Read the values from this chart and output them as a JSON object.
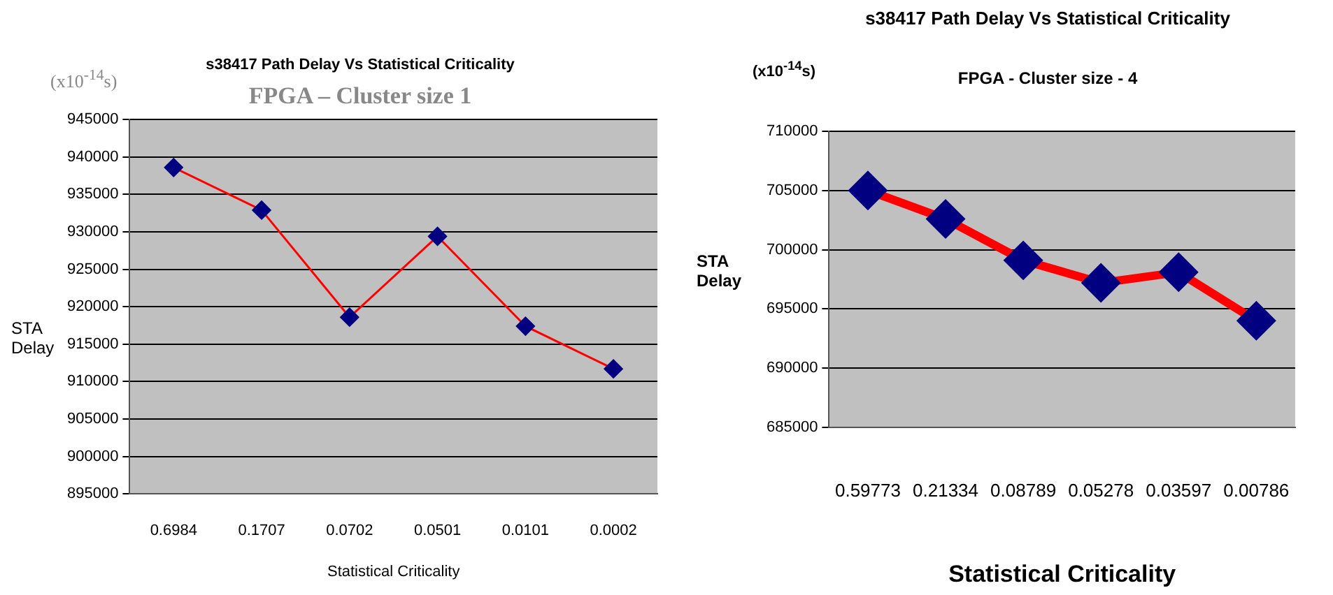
{
  "chart_data": [
    {
      "type": "line",
      "title": "s38417 Path Delay Vs Statistical Criticality",
      "subtitle": "FPGA – Cluster size 1",
      "xlabel": "Statistical Criticality",
      "ylabel": "STA Delay",
      "annotations": [
        "(x10$^{-14}$s)"
      ],
      "categories": [
        "0.6984",
        "0.1707",
        "0.0702",
        "0.0501",
        "0.0101",
        "0.0002"
      ],
      "series": [
        {
          "color": "#ff0000",
          "values": [
            938600,
            932900,
            918600,
            929400,
            917400,
            911700
          ]
        }
      ],
      "ylim": [
        895000,
        945000
      ],
      "yticks": [
        895000,
        900000,
        905000,
        910000,
        915000,
        920000,
        925000,
        930000,
        935000,
        940000,
        945000
      ],
      "grid": "y",
      "legend": false,
      "marker": "diamond",
      "line_style": "solid"
    },
    {
      "type": "line",
      "title": "s38417 Path Delay Vs Statistical Criticality",
      "subtitle": "FPGA - Cluster size - 4",
      "xlabel": "Statistical Criticality",
      "ylabel": "STA Delay",
      "annotations": [
        "(x10$^{-14}$s)"
      ],
      "categories": [
        "0.59773",
        "0.21334",
        "0.08789",
        "0.05278",
        "0.03597",
        "0.00786"
      ],
      "series": [
        {
          "color": "#ff0000",
          "values": [
            705000,
            702600,
            699100,
            697200,
            698100,
            694000
          ]
        }
      ],
      "ylim": [
        685000,
        710000
      ],
      "yticks": [
        685000,
        690000,
        695000,
        700000,
        705000,
        710000
      ],
      "grid": "y",
      "legend": false,
      "marker": "diamond",
      "line_style": "solid"
    }
  ]
}
